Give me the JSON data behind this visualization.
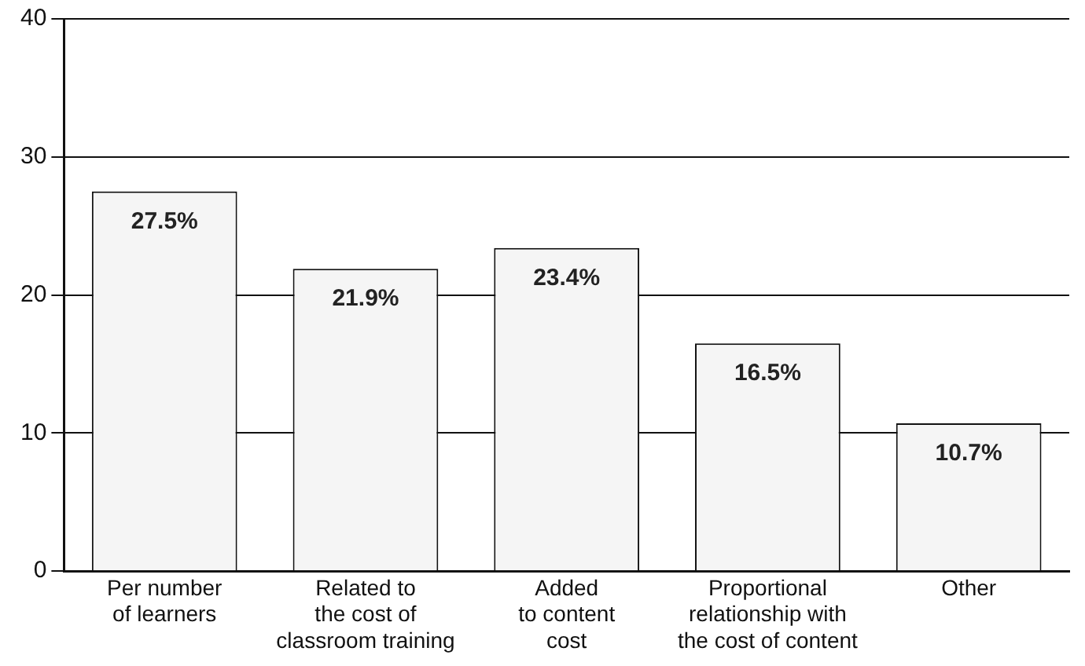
{
  "chart_data": {
    "type": "bar",
    "categories": [
      "Per number\nof learners",
      "Related to\nthe cost of\nclassroom training",
      "Added\nto content\ncost",
      "Proportional\nrelationship with\nthe cost of content",
      "Other"
    ],
    "values": [
      27.5,
      21.9,
      23.4,
      16.5,
      10.7
    ],
    "value_labels": [
      "27.5%",
      "21.9%",
      "23.4%",
      "16.5%",
      "10.7%"
    ],
    "color": "#f5f5f5",
    "ylim": [
      0,
      40
    ],
    "yticks": [
      0,
      10,
      20,
      30,
      40
    ],
    "grid": "y"
  }
}
